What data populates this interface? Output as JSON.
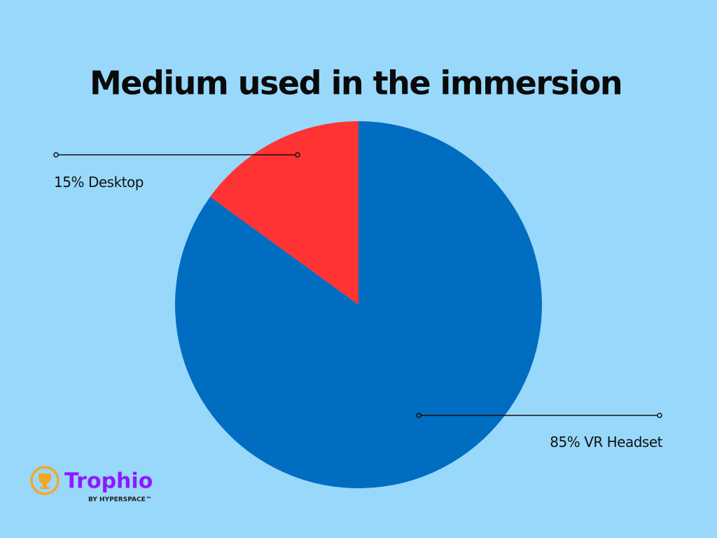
{
  "chart_data": {
    "type": "pie",
    "title": "Medium used in the immersion",
    "categories": [
      "Desktop",
      "VR Headset"
    ],
    "values": [
      15,
      85
    ],
    "value_labels": [
      "15%",
      "85%"
    ],
    "colors": [
      "#ff3333",
      "#006dc1"
    ]
  },
  "brand": {
    "name": "Trophio",
    "tagline": "BY HYPERSPACE™"
  }
}
